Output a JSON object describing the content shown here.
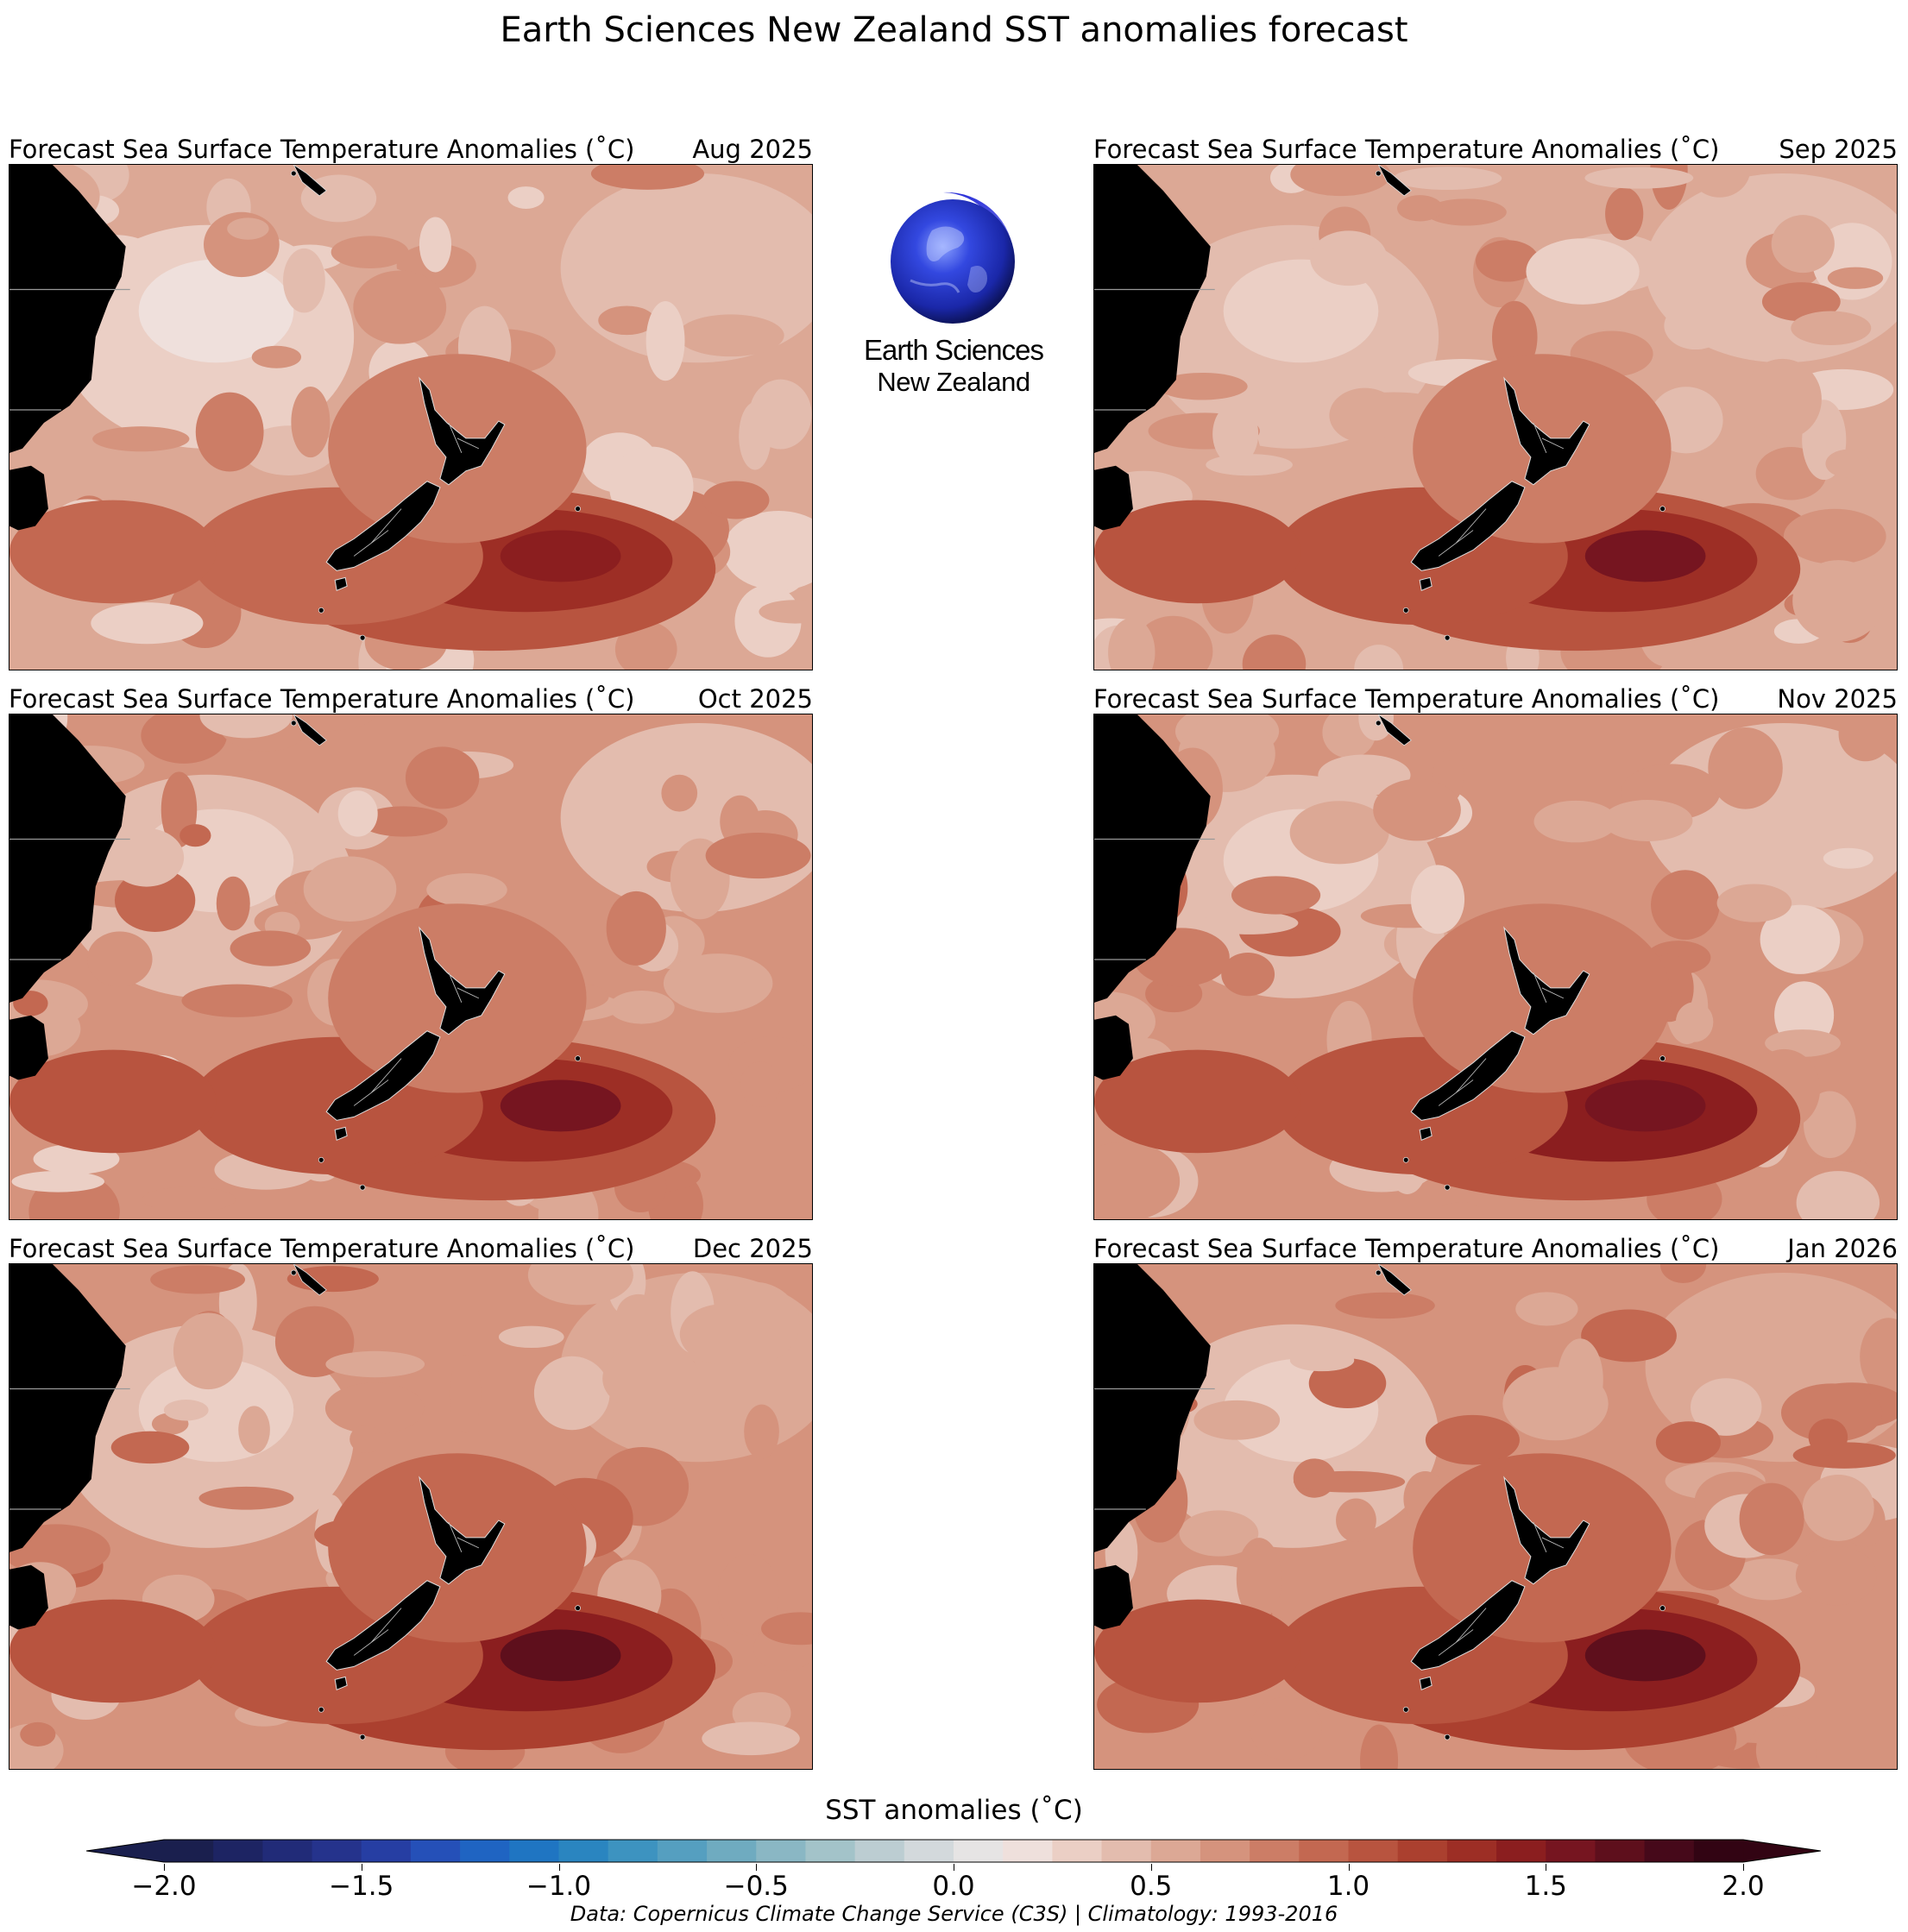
{
  "figure": {
    "title": "Earth Sciences New Zealand SST anomalies forecast",
    "credit": "Data: Copernicus Climate Change Service (C3S) | Climatology: 1993-2016"
  },
  "logo": {
    "line1": "Earth Sciences",
    "line2": "New Zealand",
    "icon": "globe-icon"
  },
  "panels": [
    {
      "title": "Forecast Sea Surface Temperature Anomalies (˚C)",
      "date": "Aug 2025",
      "intensity": 0.55
    },
    {
      "title": "Forecast Sea Surface Temperature Anomalies (˚C)",
      "date": "Sep 2025",
      "intensity": 0.62
    },
    {
      "title": "Forecast Sea Surface Temperature Anomalies (˚C)",
      "date": "Oct 2025",
      "intensity": 0.66
    },
    {
      "title": "Forecast Sea Surface Temperature Anomalies (˚C)",
      "date": "Nov 2025",
      "intensity": 0.74
    },
    {
      "title": "Forecast Sea Surface Temperature Anomalies (˚C)",
      "date": "Dec 2025",
      "intensity": 0.82
    },
    {
      "title": "Forecast Sea Surface Temperature Anomalies (˚C)",
      "date": "Jan 2026",
      "intensity": 0.82
    }
  ],
  "colorbar": {
    "title": "SST anomalies (˚C)",
    "min": -2.0,
    "max": 2.0,
    "ticks": [
      "−2.0",
      "−1.5",
      "−1.0",
      "−0.5",
      "0.0",
      "0.5",
      "1.0",
      "1.5",
      "2.0"
    ],
    "tick_values": [
      -2.0,
      -1.5,
      -1.0,
      -0.5,
      0.0,
      0.5,
      1.0,
      1.5,
      2.0
    ],
    "extend": "both",
    "colors": [
      "#1a1f4e",
      "#1d2463",
      "#212b78",
      "#25338c",
      "#263ea3",
      "#2550b8",
      "#1f64c2",
      "#1f75c2",
      "#2a85c0",
      "#3d93c0",
      "#559fc0",
      "#6fabc0",
      "#8ab7c4",
      "#a3c3c9",
      "#bccdd2",
      "#d3d9dc",
      "#e6e4e4",
      "#efe0dc",
      "#ebcfc5",
      "#e3bcae",
      "#dca895",
      "#d5937d",
      "#cc7d66",
      "#c36851",
      "#b8543f",
      "#ab402f",
      "#9d2e25",
      "#8b1e1f",
      "#761520",
      "#5e0f1c",
      "#46091a",
      "#320413"
    ]
  }
}
